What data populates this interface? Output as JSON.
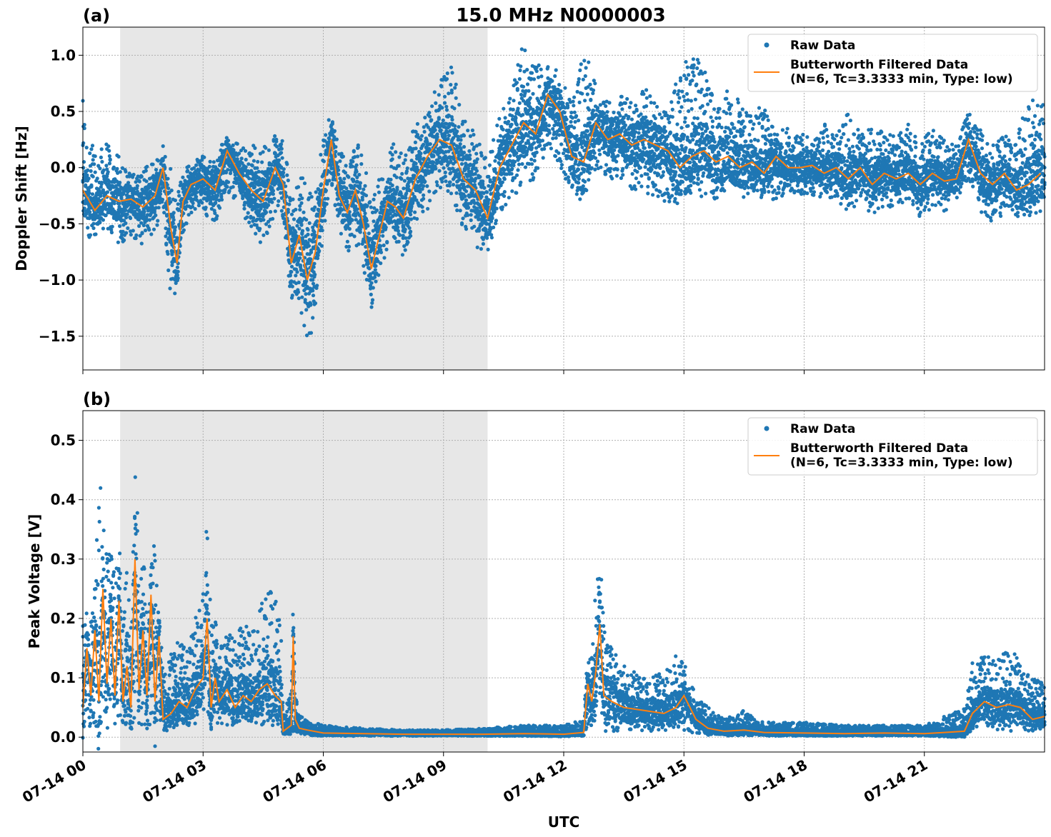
{
  "figure": {
    "title": "15.0 MHz N0000003",
    "xlabel": "UTC",
    "x_tick_labels": [
      "07-14 00",
      "07-14 03",
      "07-14 06",
      "07-14 09",
      "07-14 12",
      "07-14 15",
      "07-14 18",
      "07-14 21"
    ],
    "colors": {
      "raw": "#1f77b4",
      "filtered": "#ff7f0e",
      "shade": "#e7e7e7"
    }
  },
  "chart_data": [
    {
      "type": "scatter",
      "panel_label": "(a)",
      "ylabel": "Doppler Shift [Hz]",
      "x_unit": "hours UTC on 07-14",
      "xlim": [
        0,
        24
      ],
      "ylim": [
        -1.8,
        1.25
      ],
      "y_ticks": [
        1.0,
        0.5,
        0.0,
        -0.5,
        -1.0,
        -1.5
      ],
      "y_tick_labels": [
        "1.0",
        "0.5",
        "0.0",
        "−0.5",
        "−1.0",
        "−1.5"
      ],
      "shaded_interval": [
        0.93,
        10.1
      ],
      "grid": true,
      "legend_position": "top-right",
      "legend": [
        "Raw Data",
        "Butterworth Filtered Data",
        "(N=6, Tc=3.3333 min, Type: low)"
      ],
      "series": [
        {
          "name": "Butterworth Filtered Data",
          "kind": "line",
          "x": [
            0,
            0.3,
            0.6,
            0.9,
            1.2,
            1.5,
            1.8,
            2.0,
            2.2,
            2.35,
            2.5,
            2.7,
            3.0,
            3.3,
            3.6,
            3.9,
            4.2,
            4.5,
            4.8,
            5.0,
            5.2,
            5.4,
            5.6,
            5.8,
            6.0,
            6.2,
            6.4,
            6.6,
            6.8,
            7.0,
            7.2,
            7.4,
            7.6,
            7.8,
            8.0,
            8.3,
            8.6,
            8.9,
            9.2,
            9.5,
            9.8,
            10.1,
            10.4,
            10.7,
            11.0,
            11.3,
            11.6,
            11.9,
            12.2,
            12.5,
            12.8,
            13.1,
            13.4,
            13.7,
            14.0,
            14.3,
            14.6,
            14.9,
            15.2,
            15.5,
            15.8,
            16.1,
            16.4,
            16.7,
            17.0,
            17.3,
            17.6,
            17.9,
            18.2,
            18.5,
            18.8,
            19.1,
            19.4,
            19.7,
            20.0,
            20.3,
            20.6,
            20.9,
            21.2,
            21.5,
            21.8,
            22.1,
            22.4,
            22.7,
            23.0,
            23.3,
            23.6,
            23.9
          ],
          "y": [
            -0.2,
            -0.38,
            -0.25,
            -0.3,
            -0.28,
            -0.35,
            -0.25,
            0.0,
            -0.55,
            -0.85,
            -0.3,
            -0.15,
            -0.1,
            -0.2,
            0.15,
            -0.05,
            -0.2,
            -0.3,
            0.0,
            -0.15,
            -0.85,
            -0.6,
            -1.0,
            -0.75,
            -0.2,
            0.25,
            -0.25,
            -0.4,
            -0.2,
            -0.5,
            -0.9,
            -0.6,
            -0.3,
            -0.35,
            -0.45,
            -0.1,
            0.1,
            0.25,
            0.2,
            -0.1,
            -0.2,
            -0.45,
            0.0,
            0.2,
            0.4,
            0.3,
            0.65,
            0.5,
            0.1,
            0.05,
            0.4,
            0.25,
            0.3,
            0.2,
            0.25,
            0.2,
            0.15,
            0.0,
            0.1,
            0.15,
            0.05,
            0.1,
            0.0,
            0.05,
            -0.05,
            0.1,
            0.0,
            0.0,
            0.02,
            -0.05,
            0.0,
            -0.1,
            0.0,
            -0.15,
            -0.05,
            -0.1,
            -0.05,
            -0.15,
            -0.05,
            -0.12,
            -0.1,
            0.25,
            -0.05,
            -0.15,
            -0.05,
            -0.2,
            -0.15,
            -0.05
          ]
        },
        {
          "name": "Raw Data",
          "kind": "points",
          "note_spread": "raw scatter follows filtered curve with envelope width per x",
          "x": [
            0,
            0.3,
            0.6,
            0.9,
            1.2,
            1.5,
            1.8,
            2.0,
            2.2,
            2.35,
            2.5,
            2.7,
            3.0,
            3.3,
            3.6,
            3.9,
            4.2,
            4.5,
            4.8,
            5.0,
            5.2,
            5.4,
            5.6,
            5.8,
            6.0,
            6.2,
            6.4,
            6.6,
            6.8,
            7.0,
            7.2,
            7.4,
            7.6,
            7.8,
            8.0,
            8.3,
            8.6,
            8.9,
            9.2,
            9.5,
            9.8,
            10.1,
            10.4,
            10.7,
            11.0,
            11.3,
            11.6,
            11.9,
            12.2,
            12.5,
            12.8,
            13.1,
            13.4,
            13.7,
            14.0,
            14.3,
            14.6,
            14.9,
            15.2,
            15.5,
            15.8,
            16.1,
            16.4,
            16.7,
            17.0,
            17.3,
            17.6,
            17.9,
            18.2,
            18.5,
            18.8,
            19.1,
            19.4,
            19.7,
            20.0,
            20.3,
            20.6,
            20.9,
            21.2,
            21.5,
            21.8,
            22.1,
            22.4,
            22.7,
            23.0,
            23.3,
            23.6,
            23.9
          ],
          "y_min": [
            -0.65,
            -0.6,
            -0.55,
            -0.7,
            -0.6,
            -0.7,
            -0.6,
            -0.3,
            -1.25,
            -1.1,
            -0.6,
            -0.4,
            -0.4,
            -0.5,
            -0.2,
            -0.35,
            -0.55,
            -0.7,
            -0.4,
            -0.45,
            -1.3,
            -1.2,
            -1.65,
            -1.3,
            -0.6,
            -0.2,
            -0.6,
            -0.8,
            -0.7,
            -0.9,
            -1.25,
            -1.0,
            -0.7,
            -0.7,
            -0.8,
            -0.5,
            -0.4,
            -0.2,
            -0.3,
            -0.6,
            -0.7,
            -0.85,
            -0.4,
            -0.3,
            -0.15,
            -0.1,
            0.2,
            0.0,
            -0.25,
            -0.3,
            0.0,
            -0.1,
            -0.1,
            -0.2,
            -0.2,
            -0.3,
            -0.3,
            -0.35,
            -0.3,
            -0.25,
            -0.3,
            -0.2,
            -0.3,
            -0.25,
            -0.3,
            -0.3,
            -0.2,
            -0.25,
            -0.25,
            -0.3,
            -0.3,
            -0.4,
            -0.3,
            -0.45,
            -0.35,
            -0.35,
            -0.3,
            -0.45,
            -0.35,
            -0.4,
            -0.3,
            -0.1,
            -0.4,
            -0.5,
            -0.4,
            -0.45,
            -0.45,
            -0.4
          ],
          "y_max": [
            0.6,
            0.1,
            0.25,
            0.1,
            -0.05,
            0.0,
            0.1,
            0.25,
            0.0,
            -0.3,
            0.05,
            0.05,
            0.15,
            0.1,
            0.3,
            0.2,
            0.2,
            0.2,
            0.3,
            0.25,
            -0.2,
            0.0,
            -0.2,
            -0.2,
            0.45,
            0.45,
            0.2,
            0.0,
            0.3,
            0.1,
            -0.3,
            -0.1,
            0.1,
            0.25,
            0.1,
            0.4,
            0.5,
            0.8,
            0.9,
            0.5,
            0.3,
            0.1,
            0.45,
            0.7,
            1.12,
            0.9,
            0.95,
            0.85,
            0.6,
            1.07,
            0.75,
            0.6,
            0.65,
            0.6,
            0.75,
            0.55,
            0.5,
            0.9,
            1.0,
            0.95,
            0.55,
            0.7,
            0.6,
            0.45,
            0.6,
            0.4,
            0.35,
            0.3,
            0.3,
            0.4,
            0.3,
            0.5,
            0.3,
            0.4,
            0.3,
            0.3,
            0.4,
            0.25,
            0.35,
            0.25,
            0.2,
            0.5,
            0.35,
            0.2,
            0.3,
            0.25,
            0.65,
            0.6
          ]
        }
      ]
    },
    {
      "type": "scatter",
      "panel_label": "(b)",
      "ylabel": "Peak Voltage [V]",
      "x_unit": "hours UTC on 07-14",
      "xlim": [
        0,
        24
      ],
      "ylim": [
        -0.025,
        0.55
      ],
      "y_ticks": [
        0.5,
        0.4,
        0.3,
        0.2,
        0.1,
        0.0
      ],
      "y_tick_labels": [
        "0.5",
        "0.4",
        "0.3",
        "0.2",
        "0.1",
        "0.0"
      ],
      "shaded_interval": [
        0.93,
        10.1
      ],
      "grid": true,
      "legend_position": "top-right",
      "legend": [
        "Raw Data",
        "Butterworth Filtered Data",
        "(N=6, Tc=3.3333 min, Type: low)"
      ],
      "series": [
        {
          "name": "Butterworth Filtered Data",
          "kind": "line",
          "x": [
            0,
            0.1,
            0.2,
            0.3,
            0.4,
            0.5,
            0.6,
            0.7,
            0.8,
            0.9,
            1.0,
            1.1,
            1.2,
            1.3,
            1.4,
            1.5,
            1.6,
            1.7,
            1.8,
            1.9,
            2.0,
            2.2,
            2.4,
            2.6,
            2.8,
            3.0,
            3.1,
            3.2,
            3.3,
            3.4,
            3.6,
            3.8,
            4.0,
            4.2,
            4.4,
            4.6,
            4.8,
            4.95,
            5.0,
            5.1,
            5.2,
            5.25,
            5.3,
            5.4,
            5.6,
            6.0,
            7.0,
            8.0,
            9.0,
            10.0,
            11.0,
            12.0,
            12.5,
            12.6,
            12.7,
            12.8,
            12.9,
            13.0,
            13.2,
            13.5,
            14.0,
            14.5,
            14.8,
            15.0,
            15.3,
            15.6,
            16.0,
            16.5,
            17.0,
            18.0,
            19.0,
            20.0,
            21.0,
            21.5,
            22.0,
            22.2,
            22.5,
            22.8,
            23.1,
            23.4,
            23.7,
            24.0
          ],
          "y": [
            0.05,
            0.15,
            0.07,
            0.18,
            0.06,
            0.25,
            0.09,
            0.2,
            0.07,
            0.23,
            0.06,
            0.12,
            0.05,
            0.3,
            0.08,
            0.18,
            0.07,
            0.24,
            0.06,
            0.17,
            0.03,
            0.04,
            0.06,
            0.05,
            0.08,
            0.1,
            0.2,
            0.05,
            0.1,
            0.06,
            0.08,
            0.05,
            0.07,
            0.06,
            0.08,
            0.09,
            0.07,
            0.06,
            0.01,
            0.015,
            0.02,
            0.17,
            0.03,
            0.015,
            0.012,
            0.007,
            0.006,
            0.005,
            0.005,
            0.005,
            0.006,
            0.005,
            0.008,
            0.09,
            0.06,
            0.11,
            0.19,
            0.07,
            0.06,
            0.05,
            0.045,
            0.04,
            0.05,
            0.07,
            0.03,
            0.015,
            0.01,
            0.012,
            0.008,
            0.007,
            0.006,
            0.007,
            0.006,
            0.008,
            0.01,
            0.04,
            0.06,
            0.05,
            0.055,
            0.05,
            0.03,
            0.035
          ]
        },
        {
          "name": "Raw Data",
          "kind": "points",
          "x": [
            0,
            0.1,
            0.2,
            0.3,
            0.4,
            0.5,
            0.6,
            0.7,
            0.8,
            0.9,
            1.0,
            1.1,
            1.2,
            1.3,
            1.4,
            1.5,
            1.6,
            1.7,
            1.8,
            1.9,
            2.0,
            2.2,
            2.4,
            2.6,
            2.8,
            3.0,
            3.1,
            3.2,
            3.3,
            3.4,
            3.6,
            3.8,
            4.0,
            4.2,
            4.4,
            4.6,
            4.8,
            4.95,
            5.0,
            5.1,
            5.2,
            5.25,
            5.3,
            5.4,
            5.6,
            6.0,
            7.0,
            8.0,
            9.0,
            10.0,
            11.0,
            12.0,
            12.5,
            12.6,
            12.7,
            12.8,
            12.9,
            13.0,
            13.2,
            13.5,
            14.0,
            14.5,
            14.8,
            15.0,
            15.3,
            15.6,
            16.0,
            16.5,
            17.0,
            18.0,
            19.0,
            20.0,
            21.0,
            21.5,
            22.0,
            22.2,
            22.5,
            22.8,
            23.1,
            23.4,
            23.7,
            24.0
          ],
          "y_min": [
            0.01,
            0.02,
            0.01,
            0.02,
            0.01,
            0.02,
            0.01,
            0.02,
            0.01,
            0.02,
            0.01,
            0.02,
            0.01,
            0.02,
            0.01,
            0.02,
            0.01,
            0.02,
            0.01,
            0.01,
            0.01,
            0.01,
            0.02,
            0.02,
            0.02,
            0.03,
            0.03,
            0.02,
            0.03,
            0.02,
            0.02,
            0.02,
            0.02,
            0.02,
            0.02,
            0.02,
            0.02,
            0.02,
            0.003,
            0.005,
            0.005,
            0.01,
            0.005,
            0.004,
            0.003,
            0.002,
            0.002,
            0.002,
            0.002,
            0.002,
            0.002,
            0.002,
            0.003,
            0.02,
            0.01,
            0.03,
            0.03,
            0.01,
            0.01,
            0.01,
            0.01,
            0.01,
            0.01,
            0.01,
            0.005,
            0.003,
            0.002,
            0.003,
            0.002,
            0.002,
            0.002,
            0.002,
            0.002,
            0.002,
            0.003,
            0.01,
            0.02,
            0.01,
            0.01,
            0.01,
            0.01,
            0.01
          ],
          "y_max": [
            0.28,
            0.22,
            0.2,
            0.3,
            0.47,
            0.4,
            0.3,
            0.37,
            0.25,
            0.35,
            0.2,
            0.3,
            0.2,
            0.52,
            0.3,
            0.35,
            0.2,
            0.3,
            0.36,
            0.25,
            0.1,
            0.14,
            0.18,
            0.17,
            0.2,
            0.24,
            0.39,
            0.2,
            0.22,
            0.15,
            0.18,
            0.16,
            0.2,
            0.18,
            0.22,
            0.25,
            0.26,
            0.17,
            0.04,
            0.06,
            0.08,
            0.27,
            0.08,
            0.04,
            0.03,
            0.02,
            0.015,
            0.012,
            0.012,
            0.015,
            0.02,
            0.02,
            0.03,
            0.16,
            0.15,
            0.25,
            0.31,
            0.2,
            0.15,
            0.12,
            0.1,
            0.11,
            0.15,
            0.13,
            0.07,
            0.05,
            0.03,
            0.045,
            0.025,
            0.025,
            0.02,
            0.02,
            0.02,
            0.035,
            0.05,
            0.13,
            0.14,
            0.13,
            0.15,
            0.13,
            0.1,
            0.09
          ]
        }
      ]
    }
  ]
}
